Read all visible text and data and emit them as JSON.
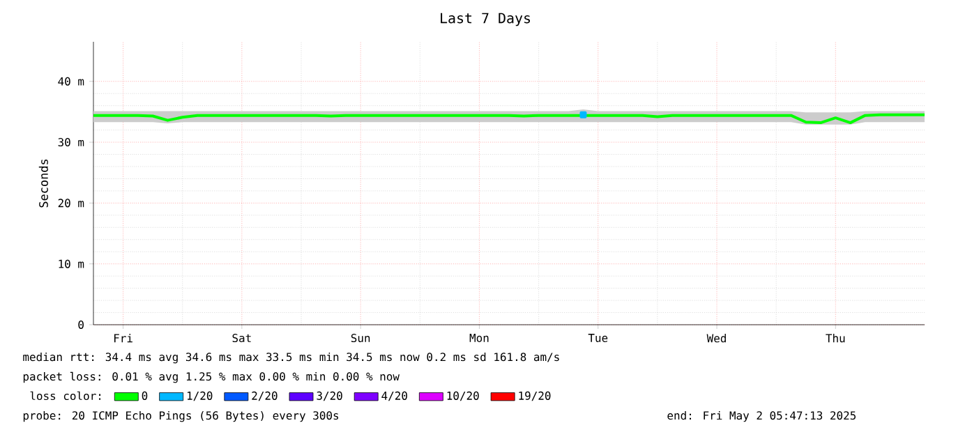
{
  "chart_data": {
    "type": "line",
    "title": "Last 7 Days",
    "ylabel": "Seconds",
    "categories": [
      null,
      null,
      "Fri",
      null,
      null,
      null,
      null,
      null,
      null,
      null,
      "Sat",
      null,
      null,
      null,
      null,
      null,
      null,
      null,
      "Sun",
      null,
      null,
      null,
      null,
      null,
      null,
      null,
      "Mon",
      null,
      null,
      null,
      null,
      null,
      null,
      null,
      "Tue",
      null,
      null,
      null,
      null,
      null,
      null,
      null,
      "Wed",
      null,
      null,
      null,
      null,
      null,
      null,
      null,
      "Thu",
      null,
      null,
      null,
      null,
      null,
      null
    ],
    "ylim": [
      0,
      46.5
    ],
    "yticks": [
      {
        "value": 0,
        "label": "0"
      },
      {
        "value": 10,
        "label": "10 m"
      },
      {
        "value": 20,
        "label": "20 m"
      },
      {
        "value": 30,
        "label": "30 m"
      },
      {
        "value": 40,
        "label": "40 m"
      }
    ],
    "grid": true,
    "legend": "bottom",
    "legend_title": "loss color:",
    "line_style": "solid",
    "series": [
      {
        "name": "0",
        "color": "#00ff00",
        "values": [
          34.4,
          34.4,
          34.4,
          34.4,
          34.3,
          33.6,
          34.1,
          34.4,
          34.4,
          34.4,
          34.4,
          34.4,
          34.4,
          34.4,
          34.4,
          34.4,
          34.3,
          34.4,
          34.4,
          34.4,
          34.4,
          34.4,
          34.4,
          34.4,
          34.4,
          34.4,
          34.4,
          34.4,
          34.4,
          34.3,
          34.4,
          34.4,
          34.4,
          34.4,
          34.4,
          34.4,
          34.4,
          34.4,
          34.2,
          34.4,
          34.4,
          34.4,
          34.4,
          34.4,
          34.4,
          34.4,
          34.4,
          34.4,
          33.3,
          33.2,
          34.0,
          33.2,
          34.4,
          34.5,
          34.5,
          34.5,
          34.5
        ],
        "lower": [
          33.3,
          33.3,
          33.3,
          33.3,
          33.3,
          33.1,
          33.3,
          33.3,
          33.3,
          33.3,
          33.3,
          33.3,
          33.3,
          33.3,
          33.3,
          33.3,
          33.3,
          33.3,
          33.3,
          33.3,
          33.3,
          33.3,
          33.3,
          33.3,
          33.3,
          33.3,
          33.3,
          33.3,
          33.3,
          33.3,
          33.3,
          33.3,
          33.3,
          33.3,
          33.3,
          33.3,
          33.3,
          33.3,
          33.3,
          33.3,
          33.3,
          33.3,
          33.3,
          33.3,
          33.3,
          33.3,
          33.3,
          33.3,
          32.9,
          32.9,
          32.9,
          32.9,
          33.3,
          33.3,
          33.3,
          33.3,
          33.3
        ],
        "upper": [
          35.1,
          35.1,
          35.1,
          35.1,
          35.1,
          35.1,
          35.1,
          35.1,
          35.1,
          35.1,
          35.1,
          35.1,
          35.1,
          35.1,
          35.1,
          35.1,
          35.1,
          35.1,
          35.1,
          35.1,
          35.1,
          35.1,
          35.1,
          35.1,
          35.1,
          35.1,
          35.1,
          35.1,
          35.1,
          35.1,
          35.1,
          35.1,
          35.1,
          35.4,
          35.1,
          35.1,
          35.1,
          35.1,
          35.1,
          35.1,
          35.1,
          35.1,
          35.1,
          35.1,
          35.1,
          35.1,
          35.1,
          35.1,
          34.9,
          34.9,
          34.9,
          34.9,
          35.1,
          35.1,
          35.1,
          35.1,
          35.1
        ]
      },
      {
        "name": "1/20",
        "color": "#00b8ff",
        "marker": "square",
        "values": [
          null,
          null,
          null,
          null,
          null,
          null,
          null,
          null,
          null,
          null,
          null,
          null,
          null,
          null,
          null,
          null,
          null,
          null,
          null,
          null,
          null,
          null,
          null,
          null,
          null,
          null,
          null,
          null,
          null,
          null,
          null,
          null,
          null,
          34.5,
          null,
          null,
          null,
          null,
          null,
          null,
          null,
          null,
          null,
          null,
          null,
          null,
          null,
          null,
          null,
          null,
          null,
          null,
          null,
          null,
          null,
          null,
          null
        ]
      },
      {
        "name": "2/20",
        "color": "#0059ff",
        "values": [
          null,
          null,
          null,
          null,
          null,
          null,
          null,
          null,
          null,
          null,
          null,
          null,
          null,
          null,
          null,
          null,
          null,
          null,
          null,
          null,
          null,
          null,
          null,
          null,
          null,
          null,
          null,
          null,
          null,
          null,
          null,
          null,
          null,
          null,
          null,
          null,
          null,
          null,
          null,
          null,
          null,
          null,
          null,
          null,
          null,
          null,
          null,
          null,
          null,
          null,
          null,
          null,
          null,
          null,
          null,
          null,
          null
        ]
      },
      {
        "name": "3/20",
        "color": "#5e00ff",
        "values": [
          null,
          null,
          null,
          null,
          null,
          null,
          null,
          null,
          null,
          null,
          null,
          null,
          null,
          null,
          null,
          null,
          null,
          null,
          null,
          null,
          null,
          null,
          null,
          null,
          null,
          null,
          null,
          null,
          null,
          null,
          null,
          null,
          null,
          null,
          null,
          null,
          null,
          null,
          null,
          null,
          null,
          null,
          null,
          null,
          null,
          null,
          null,
          null,
          null,
          null,
          null,
          null,
          null,
          null,
          null,
          null,
          null
        ]
      },
      {
        "name": "4/20",
        "color": "#7e00ff",
        "values": [
          null,
          null,
          null,
          null,
          null,
          null,
          null,
          null,
          null,
          null,
          null,
          null,
          null,
          null,
          null,
          null,
          null,
          null,
          null,
          null,
          null,
          null,
          null,
          null,
          null,
          null,
          null,
          null,
          null,
          null,
          null,
          null,
          null,
          null,
          null,
          null,
          null,
          null,
          null,
          null,
          null,
          null,
          null,
          null,
          null,
          null,
          null,
          null,
          null,
          null,
          null,
          null,
          null,
          null,
          null,
          null,
          null
        ]
      },
      {
        "name": "10/20",
        "color": "#dd00ff",
        "values": [
          null,
          null,
          null,
          null,
          null,
          null,
          null,
          null,
          null,
          null,
          null,
          null,
          null,
          null,
          null,
          null,
          null,
          null,
          null,
          null,
          null,
          null,
          null,
          null,
          null,
          null,
          null,
          null,
          null,
          null,
          null,
          null,
          null,
          null,
          null,
          null,
          null,
          null,
          null,
          null,
          null,
          null,
          null,
          null,
          null,
          null,
          null,
          null,
          null,
          null,
          null,
          null,
          null,
          null,
          null,
          null,
          null
        ]
      },
      {
        "name": "19/20",
        "color": "#ff0000",
        "values": [
          null,
          null,
          null,
          null,
          null,
          null,
          null,
          null,
          null,
          null,
          null,
          null,
          null,
          null,
          null,
          null,
          null,
          null,
          null,
          null,
          null,
          null,
          null,
          null,
          null,
          null,
          null,
          null,
          null,
          null,
          null,
          null,
          null,
          null,
          null,
          null,
          null,
          null,
          null,
          null,
          null,
          null,
          null,
          null,
          null,
          null,
          null,
          null,
          null,
          null,
          null,
          null,
          null,
          null,
          null,
          null,
          null
        ]
      }
    ],
    "annotations": [
      "median rtt:  34.4 ms avg  34.6 ms max  33.5 ms min  34.5 ms now  0.2 ms sd  161.8   am/s",
      "packet loss: 0.01 % avg  1.25 % max  0.00 % min  0.00 % now",
      "probe:       20 ICMP Echo Pings (56 Bytes) every 300s",
      "end: Fri May  2 05:47:13 2025"
    ]
  }
}
